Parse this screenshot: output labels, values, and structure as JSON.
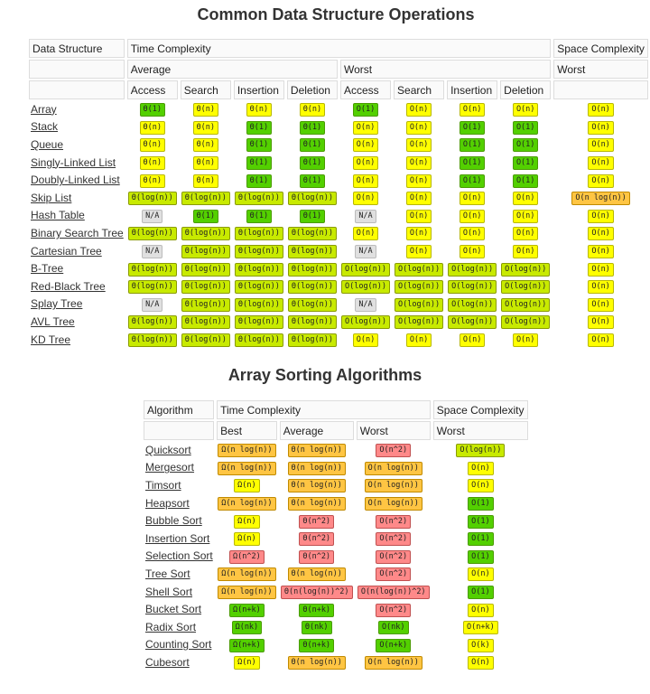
{
  "ds": {
    "title": "Common Data Structure Operations",
    "header": {
      "col_label": "Data Structure",
      "time": "Time Complexity",
      "space": "Space Complexity",
      "average": "Average",
      "worst": "Worst",
      "space_worst": "Worst",
      "ops": [
        "Access",
        "Search",
        "Insertion",
        "Deletion",
        "Access",
        "Search",
        "Insertion",
        "Deletion"
      ]
    },
    "rows": [
      {
        "name": "Array",
        "cells": [
          [
            "Θ(1)",
            "good"
          ],
          [
            "Θ(n)",
            "ok"
          ],
          [
            "Θ(n)",
            "ok"
          ],
          [
            "Θ(n)",
            "ok"
          ],
          [
            "O(1)",
            "good"
          ],
          [
            "O(n)",
            "ok"
          ],
          [
            "O(n)",
            "ok"
          ],
          [
            "O(n)",
            "ok"
          ],
          [
            "O(n)",
            "ok"
          ]
        ]
      },
      {
        "name": "Stack",
        "cells": [
          [
            "Θ(n)",
            "ok"
          ],
          [
            "Θ(n)",
            "ok"
          ],
          [
            "Θ(1)",
            "good"
          ],
          [
            "Θ(1)",
            "good"
          ],
          [
            "O(n)",
            "ok"
          ],
          [
            "O(n)",
            "ok"
          ],
          [
            "O(1)",
            "good"
          ],
          [
            "O(1)",
            "good"
          ],
          [
            "O(n)",
            "ok"
          ]
        ]
      },
      {
        "name": "Queue",
        "cells": [
          [
            "Θ(n)",
            "ok"
          ],
          [
            "Θ(n)",
            "ok"
          ],
          [
            "Θ(1)",
            "good"
          ],
          [
            "Θ(1)",
            "good"
          ],
          [
            "O(n)",
            "ok"
          ],
          [
            "O(n)",
            "ok"
          ],
          [
            "O(1)",
            "good"
          ],
          [
            "O(1)",
            "good"
          ],
          [
            "O(n)",
            "ok"
          ]
        ]
      },
      {
        "name": "Singly-Linked List",
        "cells": [
          [
            "Θ(n)",
            "ok"
          ],
          [
            "Θ(n)",
            "ok"
          ],
          [
            "Θ(1)",
            "good"
          ],
          [
            "Θ(1)",
            "good"
          ],
          [
            "O(n)",
            "ok"
          ],
          [
            "O(n)",
            "ok"
          ],
          [
            "O(1)",
            "good"
          ],
          [
            "O(1)",
            "good"
          ],
          [
            "O(n)",
            "ok"
          ]
        ]
      },
      {
        "name": "Doubly-Linked List",
        "cells": [
          [
            "Θ(n)",
            "ok"
          ],
          [
            "Θ(n)",
            "ok"
          ],
          [
            "Θ(1)",
            "good"
          ],
          [
            "Θ(1)",
            "good"
          ],
          [
            "O(n)",
            "ok"
          ],
          [
            "O(n)",
            "ok"
          ],
          [
            "O(1)",
            "good"
          ],
          [
            "O(1)",
            "good"
          ],
          [
            "O(n)",
            "ok"
          ]
        ]
      },
      {
        "name": "Skip List",
        "cells": [
          [
            "Θ(log(n))",
            "fair"
          ],
          [
            "Θ(log(n))",
            "fair"
          ],
          [
            "Θ(log(n))",
            "fair"
          ],
          [
            "Θ(log(n))",
            "fair"
          ],
          [
            "O(n)",
            "ok"
          ],
          [
            "O(n)",
            "ok"
          ],
          [
            "O(n)",
            "ok"
          ],
          [
            "O(n)",
            "ok"
          ],
          [
            "O(n log(n))",
            "bad"
          ]
        ]
      },
      {
        "name": "Hash Table",
        "cells": [
          [
            "N/A",
            "na"
          ],
          [
            "Θ(1)",
            "good"
          ],
          [
            "Θ(1)",
            "good"
          ],
          [
            "Θ(1)",
            "good"
          ],
          [
            "N/A",
            "na"
          ],
          [
            "O(n)",
            "ok"
          ],
          [
            "O(n)",
            "ok"
          ],
          [
            "O(n)",
            "ok"
          ],
          [
            "O(n)",
            "ok"
          ]
        ]
      },
      {
        "name": "Binary Search Tree",
        "cells": [
          [
            "Θ(log(n))",
            "fair"
          ],
          [
            "Θ(log(n))",
            "fair"
          ],
          [
            "Θ(log(n))",
            "fair"
          ],
          [
            "Θ(log(n))",
            "fair"
          ],
          [
            "O(n)",
            "ok"
          ],
          [
            "O(n)",
            "ok"
          ],
          [
            "O(n)",
            "ok"
          ],
          [
            "O(n)",
            "ok"
          ],
          [
            "O(n)",
            "ok"
          ]
        ]
      },
      {
        "name": "Cartesian Tree",
        "cells": [
          [
            "N/A",
            "na"
          ],
          [
            "Θ(log(n))",
            "fair"
          ],
          [
            "Θ(log(n))",
            "fair"
          ],
          [
            "Θ(log(n))",
            "fair"
          ],
          [
            "N/A",
            "na"
          ],
          [
            "O(n)",
            "ok"
          ],
          [
            "O(n)",
            "ok"
          ],
          [
            "O(n)",
            "ok"
          ],
          [
            "O(n)",
            "ok"
          ]
        ]
      },
      {
        "name": "B-Tree",
        "cells": [
          [
            "Θ(log(n))",
            "fair"
          ],
          [
            "Θ(log(n))",
            "fair"
          ],
          [
            "Θ(log(n))",
            "fair"
          ],
          [
            "Θ(log(n))",
            "fair"
          ],
          [
            "O(log(n))",
            "fair"
          ],
          [
            "O(log(n))",
            "fair"
          ],
          [
            "O(log(n))",
            "fair"
          ],
          [
            "O(log(n))",
            "fair"
          ],
          [
            "O(n)",
            "ok"
          ]
        ]
      },
      {
        "name": "Red-Black Tree",
        "cells": [
          [
            "Θ(log(n))",
            "fair"
          ],
          [
            "Θ(log(n))",
            "fair"
          ],
          [
            "Θ(log(n))",
            "fair"
          ],
          [
            "Θ(log(n))",
            "fair"
          ],
          [
            "O(log(n))",
            "fair"
          ],
          [
            "O(log(n))",
            "fair"
          ],
          [
            "O(log(n))",
            "fair"
          ],
          [
            "O(log(n))",
            "fair"
          ],
          [
            "O(n)",
            "ok"
          ]
        ]
      },
      {
        "name": "Splay Tree",
        "cells": [
          [
            "N/A",
            "na"
          ],
          [
            "Θ(log(n))",
            "fair"
          ],
          [
            "Θ(log(n))",
            "fair"
          ],
          [
            "Θ(log(n))",
            "fair"
          ],
          [
            "N/A",
            "na"
          ],
          [
            "O(log(n))",
            "fair"
          ],
          [
            "O(log(n))",
            "fair"
          ],
          [
            "O(log(n))",
            "fair"
          ],
          [
            "O(n)",
            "ok"
          ]
        ]
      },
      {
        "name": "AVL Tree",
        "cells": [
          [
            "Θ(log(n))",
            "fair"
          ],
          [
            "Θ(log(n))",
            "fair"
          ],
          [
            "Θ(log(n))",
            "fair"
          ],
          [
            "Θ(log(n))",
            "fair"
          ],
          [
            "O(log(n))",
            "fair"
          ],
          [
            "O(log(n))",
            "fair"
          ],
          [
            "O(log(n))",
            "fair"
          ],
          [
            "O(log(n))",
            "fair"
          ],
          [
            "O(n)",
            "ok"
          ]
        ]
      },
      {
        "name": "KD Tree",
        "cells": [
          [
            "Θ(log(n))",
            "fair"
          ],
          [
            "Θ(log(n))",
            "fair"
          ],
          [
            "Θ(log(n))",
            "fair"
          ],
          [
            "Θ(log(n))",
            "fair"
          ],
          [
            "O(n)",
            "ok"
          ],
          [
            "O(n)",
            "ok"
          ],
          [
            "O(n)",
            "ok"
          ],
          [
            "O(n)",
            "ok"
          ],
          [
            "O(n)",
            "ok"
          ]
        ]
      }
    ]
  },
  "sort": {
    "title": "Array Sorting Algorithms",
    "header": {
      "col_label": "Algorithm",
      "time": "Time Complexity",
      "space": "Space Complexity",
      "best": "Best",
      "average": "Average",
      "worst": "Worst",
      "space_worst": "Worst"
    },
    "rows": [
      {
        "name": "Quicksort",
        "cells": [
          [
            "Ω(n log(n))",
            "bad"
          ],
          [
            "Θ(n log(n))",
            "bad"
          ],
          [
            "O(n^2)",
            "poor"
          ],
          [
            "O(log(n))",
            "fair"
          ]
        ]
      },
      {
        "name": "Mergesort",
        "cells": [
          [
            "Ω(n log(n))",
            "bad"
          ],
          [
            "Θ(n log(n))",
            "bad"
          ],
          [
            "O(n log(n))",
            "bad"
          ],
          [
            "O(n)",
            "ok"
          ]
        ]
      },
      {
        "name": "Timsort",
        "cells": [
          [
            "Ω(n)",
            "ok"
          ],
          [
            "Θ(n log(n))",
            "bad"
          ],
          [
            "O(n log(n))",
            "bad"
          ],
          [
            "O(n)",
            "ok"
          ]
        ]
      },
      {
        "name": "Heapsort",
        "cells": [
          [
            "Ω(n log(n))",
            "bad"
          ],
          [
            "Θ(n log(n))",
            "bad"
          ],
          [
            "O(n log(n))",
            "bad"
          ],
          [
            "O(1)",
            "good"
          ]
        ]
      },
      {
        "name": "Bubble Sort",
        "cells": [
          [
            "Ω(n)",
            "ok"
          ],
          [
            "Θ(n^2)",
            "poor"
          ],
          [
            "O(n^2)",
            "poor"
          ],
          [
            "O(1)",
            "good"
          ]
        ]
      },
      {
        "name": "Insertion Sort",
        "cells": [
          [
            "Ω(n)",
            "ok"
          ],
          [
            "Θ(n^2)",
            "poor"
          ],
          [
            "O(n^2)",
            "poor"
          ],
          [
            "O(1)",
            "good"
          ]
        ]
      },
      {
        "name": "Selection Sort",
        "cells": [
          [
            "Ω(n^2)",
            "poor"
          ],
          [
            "Θ(n^2)",
            "poor"
          ],
          [
            "O(n^2)",
            "poor"
          ],
          [
            "O(1)",
            "good"
          ]
        ]
      },
      {
        "name": "Tree Sort",
        "cells": [
          [
            "Ω(n log(n))",
            "bad"
          ],
          [
            "Θ(n log(n))",
            "bad"
          ],
          [
            "O(n^2)",
            "poor"
          ],
          [
            "O(n)",
            "ok"
          ]
        ]
      },
      {
        "name": "Shell Sort",
        "cells": [
          [
            "Ω(n log(n))",
            "bad"
          ],
          [
            "Θ(n(log(n))^2)",
            "poor"
          ],
          [
            "O(n(log(n))^2)",
            "poor"
          ],
          [
            "O(1)",
            "good"
          ]
        ]
      },
      {
        "name": "Bucket Sort",
        "cells": [
          [
            "Ω(n+k)",
            "good"
          ],
          [
            "Θ(n+k)",
            "good"
          ],
          [
            "O(n^2)",
            "poor"
          ],
          [
            "O(n)",
            "ok"
          ]
        ]
      },
      {
        "name": "Radix Sort",
        "cells": [
          [
            "Ω(nk)",
            "good"
          ],
          [
            "Θ(nk)",
            "good"
          ],
          [
            "O(nk)",
            "good"
          ],
          [
            "O(n+k)",
            "ok"
          ]
        ]
      },
      {
        "name": "Counting Sort",
        "cells": [
          [
            "Ω(n+k)",
            "good"
          ],
          [
            "Θ(n+k)",
            "good"
          ],
          [
            "O(n+k)",
            "good"
          ],
          [
            "O(k)",
            "ok"
          ]
        ]
      },
      {
        "name": "Cubesort",
        "cells": [
          [
            "Ω(n)",
            "ok"
          ],
          [
            "Θ(n log(n))",
            "bad"
          ],
          [
            "O(n log(n))",
            "bad"
          ],
          [
            "O(n)",
            "ok"
          ]
        ]
      }
    ]
  },
  "colors": {
    "good": "#53d000",
    "fair": "#c8ea00",
    "ok": "#ffff00",
    "bad": "#ffc543",
    "poor": "#ff8989",
    "na": "#e0e0e0"
  }
}
